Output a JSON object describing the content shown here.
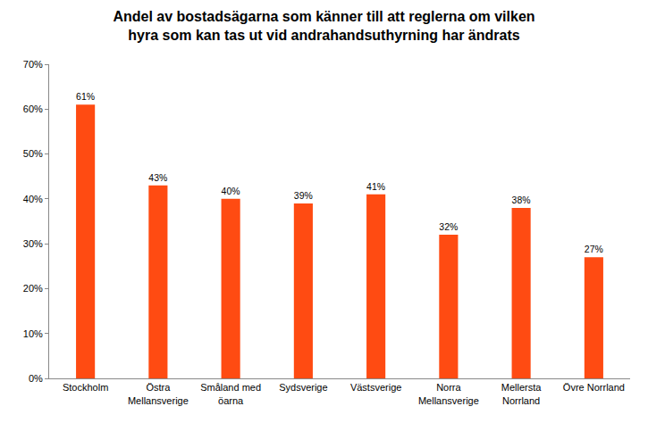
{
  "chart_data": {
    "type": "bar",
    "title": "Andel av bostadsägarna som känner till att reglerna om vilken hyra som kan tas ut vid andrahandsuthyrning har ändrats",
    "categories": [
      "Stockholm",
      "Östra Mellansverige",
      "Småland med öarna",
      "Sydsverige",
      "Västsverige",
      "Norra Mellansverige",
      "Mellersta Norrland",
      "Övre Norrland"
    ],
    "values": [
      61,
      43,
      40,
      39,
      41,
      32,
      38,
      27
    ],
    "value_labels": [
      "61%",
      "43%",
      "40%",
      "39%",
      "41%",
      "32%",
      "38%",
      "27%"
    ],
    "color": "#ff4b12",
    "ylim": [
      0,
      70
    ],
    "yticks": [
      {
        "value": 0,
        "label": "0%"
      },
      {
        "value": 10,
        "label": "10%"
      },
      {
        "value": 20,
        "label": "20%"
      },
      {
        "value": 30,
        "label": "30%"
      },
      {
        "value": 40,
        "label": "40%"
      },
      {
        "value": 50,
        "label": "50%"
      },
      {
        "value": 60,
        "label": "60%"
      },
      {
        "value": 70,
        "label": "70%"
      }
    ],
    "grid": false,
    "data_labels": true
  }
}
